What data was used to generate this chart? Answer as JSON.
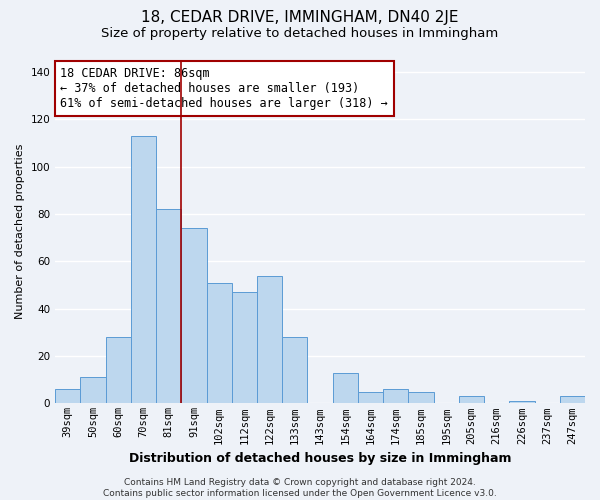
{
  "title": "18, CEDAR DRIVE, IMMINGHAM, DN40 2JE",
  "subtitle": "Size of property relative to detached houses in Immingham",
  "xlabel": "Distribution of detached houses by size in Immingham",
  "ylabel": "Number of detached properties",
  "categories": [
    "39sqm",
    "50sqm",
    "60sqm",
    "70sqm",
    "81sqm",
    "91sqm",
    "102sqm",
    "112sqm",
    "122sqm",
    "133sqm",
    "143sqm",
    "154sqm",
    "164sqm",
    "174sqm",
    "185sqm",
    "195sqm",
    "205sqm",
    "216sqm",
    "226sqm",
    "237sqm",
    "247sqm"
  ],
  "values": [
    6,
    11,
    28,
    113,
    82,
    74,
    51,
    47,
    54,
    28,
    0,
    13,
    5,
    6,
    5,
    0,
    3,
    0,
    1,
    0,
    3
  ],
  "bar_color": "#bdd7ee",
  "bar_edge_color": "#5b9bd5",
  "vline_x_index": 4.5,
  "vline_color": "#a00000",
  "annotation_lines": [
    "18 CEDAR DRIVE: 86sqm",
    "← 37% of detached houses are smaller (193)",
    "61% of semi-detached houses are larger (318) →"
  ],
  "annotation_box_facecolor": "#ffffff",
  "annotation_box_edgecolor": "#a00000",
  "ylim": [
    0,
    145
  ],
  "yticks": [
    0,
    20,
    40,
    60,
    80,
    100,
    120,
    140
  ],
  "footer_line1": "Contains HM Land Registry data © Crown copyright and database right 2024.",
  "footer_line2": "Contains public sector information licensed under the Open Government Licence v3.0.",
  "background_color": "#eef2f8",
  "grid_color": "#ffffff",
  "title_fontsize": 11,
  "subtitle_fontsize": 9.5,
  "xlabel_fontsize": 9,
  "ylabel_fontsize": 8,
  "tick_fontsize": 7.5,
  "annotation_fontsize": 8.5,
  "footer_fontsize": 6.5
}
